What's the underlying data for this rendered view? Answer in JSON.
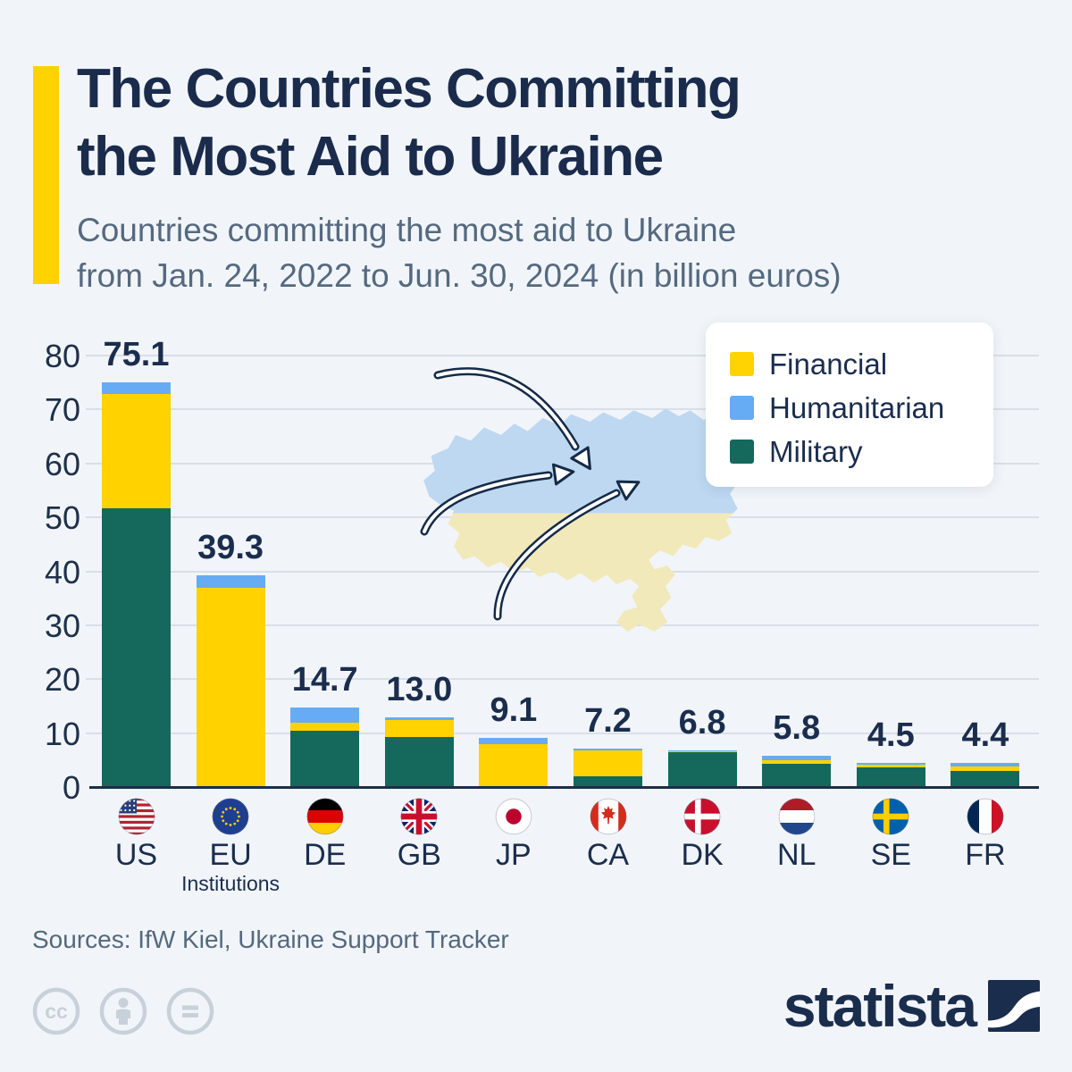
{
  "header": {
    "title_line1": "The Countries Committing",
    "title_line2": "the Most Aid to Ukraine",
    "subtitle_line1": "Countries committing the most aid to Ukraine",
    "subtitle_line2": "from Jan. 24, 2022 to Jun. 30, 2024 (in billion euros)",
    "accent_color": "#FFD200"
  },
  "chart_data": {
    "type": "bar",
    "stacked": true,
    "title": "Countries committing the most aid to Ukraine from Jan. 24, 2022 to Jun. 30, 2024",
    "unit": "billion euros",
    "categories": [
      "US",
      "EU",
      "DE",
      "GB",
      "JP",
      "CA",
      "DK",
      "NL",
      "SE",
      "FR"
    ],
    "category_sublabels": [
      "",
      "Institutions",
      "",
      "",
      "",
      "",
      "",
      "",
      "",
      ""
    ],
    "totals": [
      75.1,
      39.3,
      14.7,
      13.0,
      9.1,
      7.2,
      6.8,
      5.8,
      4.5,
      4.4
    ],
    "totals_display": [
      "75.1",
      "39.3",
      "14.7",
      "13.0",
      "9.1",
      "7.2",
      "6.8",
      "5.8",
      "4.5",
      "4.4"
    ],
    "stack_order_bottom_to_top": [
      "Military",
      "Financial",
      "Humanitarian"
    ],
    "series": [
      {
        "name": "Military",
        "color": "#14695C",
        "values": [
          51.6,
          0,
          10.4,
          9.2,
          0,
          2.0,
          6.4,
          4.3,
          3.7,
          2.9
        ]
      },
      {
        "name": "Financial",
        "color": "#FFD200",
        "values": [
          21.2,
          36.9,
          1.6,
          3.2,
          8.0,
          4.8,
          0.2,
          0.7,
          0.5,
          0.9
        ]
      },
      {
        "name": "Humanitarian",
        "color": "#66ACF4",
        "values": [
          2.3,
          2.4,
          2.7,
          0.6,
          1.1,
          0.4,
          0.2,
          0.8,
          0.3,
          0.6
        ]
      }
    ],
    "legend": [
      {
        "label": "Financial",
        "color": "#FFD200"
      },
      {
        "label": "Humanitarian",
        "color": "#66ACF4"
      },
      {
        "label": "Military",
        "color": "#14695C"
      }
    ],
    "legend_position": "top-right",
    "y_axis": {
      "min": 0,
      "max": 80,
      "tick_interval": 10,
      "ticks": [
        0,
        10,
        20,
        30,
        40,
        50,
        60,
        70,
        80
      ]
    },
    "grid": true,
    "annotation_graphic": "ukraine-map-with-aid-arrows"
  },
  "footer": {
    "sources": "Sources: IfW Kiel, Ukraine Support Tracker",
    "license_icons": [
      "cc-icon",
      "attribution-person-icon",
      "no-derivatives-icon"
    ],
    "brand": "statista"
  }
}
